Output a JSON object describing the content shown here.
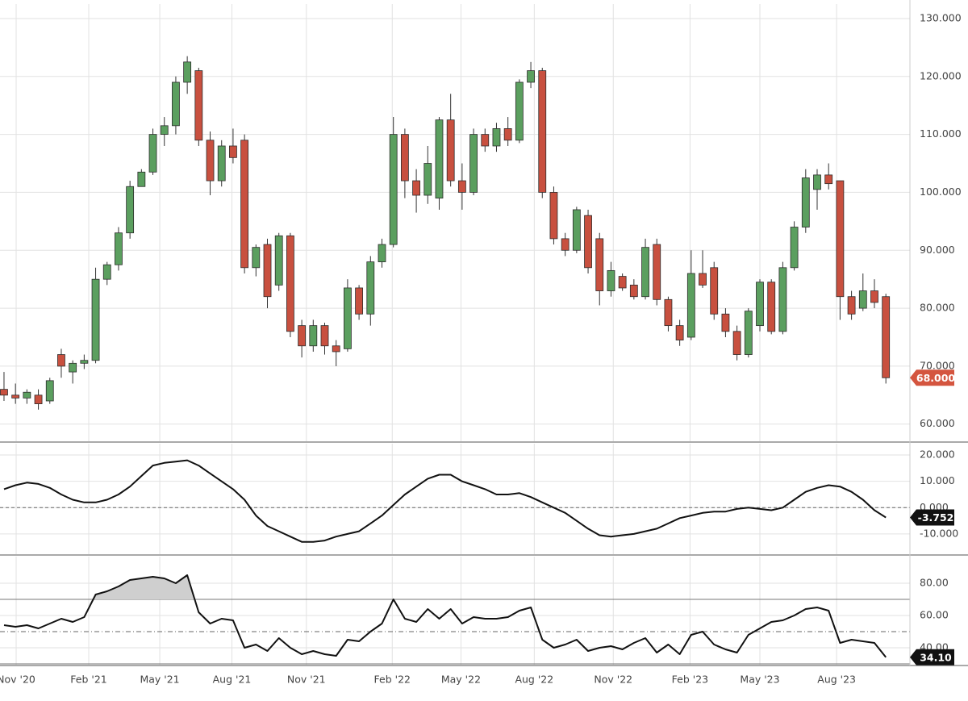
{
  "chart_data": [
    {
      "type": "candlestick",
      "x": [
        0,
        1,
        2,
        3,
        4,
        5,
        6,
        7,
        8,
        9,
        10,
        11,
        12,
        13,
        14,
        15,
        16,
        17,
        18,
        19,
        20,
        21,
        22,
        23,
        24,
        25,
        26,
        27,
        28,
        29,
        30,
        31,
        32,
        33,
        34,
        35,
        36,
        37,
        38,
        39,
        40,
        41,
        42,
        43,
        44,
        45,
        46,
        47,
        48,
        49,
        50,
        51,
        52,
        53,
        54,
        55,
        56,
        57,
        58,
        59,
        60,
        61,
        62,
        63,
        64,
        65,
        66,
        67,
        68,
        69,
        70,
        71,
        72,
        73,
        74,
        75,
        76,
        77
      ],
      "open": [
        66,
        65,
        64.5,
        65,
        64,
        72,
        69,
        70.5,
        71,
        85,
        87.5,
        93,
        101,
        103.5,
        110,
        111.5,
        119,
        121,
        109,
        102,
        108,
        109,
        87,
        91,
        84,
        92.5,
        77,
        73.5,
        77,
        73.5,
        73,
        83.5,
        79,
        88,
        91,
        110,
        102,
        99.5,
        99,
        112.5,
        102,
        100,
        110,
        108,
        111,
        109,
        119,
        121,
        100,
        92,
        90,
        96,
        92,
        83,
        85.5,
        84,
        82,
        91,
        81.5,
        77,
        75,
        86,
        87,
        79,
        76,
        72,
        77,
        84.5,
        76,
        87,
        94,
        100.5,
        103,
        102,
        82,
        80,
        83,
        82
      ],
      "high": [
        69,
        67,
        66,
        66,
        68,
        73,
        71,
        72,
        87,
        88,
        94,
        102,
        104,
        111,
        113,
        120,
        123.5,
        121.5,
        110.5,
        109,
        111,
        110,
        91,
        92,
        93,
        93,
        78,
        78,
        77.5,
        74.5,
        85,
        84,
        89,
        92,
        113,
        111,
        104,
        108,
        113,
        117,
        105,
        111,
        111,
        112,
        113,
        119.5,
        122.5,
        121.5,
        101,
        93,
        97.5,
        97,
        93,
        88,
        86,
        85,
        92,
        92,
        82,
        78,
        90,
        90,
        88,
        80,
        77,
        80,
        85,
        85,
        88,
        95,
        104,
        104,
        105,
        102,
        83,
        86,
        85,
        82.5
      ],
      "low": [
        64,
        63.5,
        63.5,
        62.5,
        63.5,
        68,
        67,
        69.5,
        70.5,
        84,
        86.5,
        92,
        101,
        103,
        108,
        110,
        117,
        108,
        99.5,
        101,
        105,
        86,
        85.5,
        80,
        83,
        75,
        71.5,
        72.5,
        72,
        70,
        72.5,
        78,
        77,
        87,
        90.5,
        99,
        96.5,
        98,
        97,
        101,
        97,
        99.5,
        107,
        107,
        108,
        108.5,
        118,
        99,
        91,
        89,
        89.5,
        86,
        80.5,
        82,
        83,
        81.5,
        81.5,
        80.5,
        76,
        73.5,
        74.5,
        83.5,
        78,
        75,
        71,
        71.5,
        76,
        75.5,
        75.5,
        86.5,
        93,
        97,
        100.5,
        78,
        78,
        79.5,
        80,
        67
      ],
      "close": [
        65,
        64.5,
        65.5,
        63.5,
        67.5,
        70,
        70.5,
        71,
        85,
        87.5,
        93,
        101,
        103.5,
        110,
        111.5,
        119,
        122.5,
        109,
        102,
        108,
        106,
        87,
        90.5,
        82,
        92.5,
        76,
        73.5,
        77,
        73.5,
        72.5,
        83.5,
        79,
        88,
        91,
        110,
        102,
        99.5,
        105,
        112.5,
        102,
        100,
        110,
        108,
        111,
        109,
        119,
        121,
        100,
        92,
        90,
        97,
        87,
        83,
        86.5,
        83.5,
        82,
        90.5,
        81.5,
        77,
        74.5,
        86,
        84,
        79,
        76,
        72,
        79.5,
        84.5,
        76,
        87,
        94,
        102.5,
        103,
        101.5,
        82,
        79,
        83,
        81,
        68
      ],
      "up_color": "#5b9f5f",
      "down_color": "#c8503f",
      "ylim": [
        56.9,
        132.5
      ],
      "yticks": [
        {
          "value": 60,
          "label": "60.000"
        },
        {
          "value": 70,
          "label": "70.000"
        },
        {
          "value": 80,
          "label": "80.000"
        },
        {
          "value": 90,
          "label": "90.000"
        },
        {
          "value": 100,
          "label": "100.000"
        },
        {
          "value": 110,
          "label": "110.000"
        },
        {
          "value": 120,
          "label": "120.000"
        },
        {
          "value": 130,
          "label": "130.000"
        }
      ],
      "xlim": [
        -0.35,
        79.1
      ],
      "xticks": [
        {
          "value": 1.06,
          "label": "Nov '20"
        },
        {
          "value": 7.4,
          "label": "Feb '21"
        },
        {
          "value": 13.6,
          "label": "May '21"
        },
        {
          "value": 19.9,
          "label": "Aug '21"
        },
        {
          "value": 26.4,
          "label": "Nov '21"
        },
        {
          "value": 33.9,
          "label": "Feb '22"
        },
        {
          "value": 39.9,
          "label": "May '22"
        },
        {
          "value": 46.3,
          "label": "Aug '22"
        },
        {
          "value": 53.2,
          "label": "Nov '22"
        },
        {
          "value": 59.9,
          "label": "Feb '23"
        },
        {
          "value": 66,
          "label": "May '23"
        },
        {
          "value": 72.7,
          "label": "Aug '23"
        }
      ],
      "grid": true,
      "last": {
        "value": 68,
        "label": "68.000",
        "color": "#d4553f"
      }
    },
    {
      "type": "line",
      "values": [
        7,
        8.5,
        9.5,
        9,
        7.5,
        5,
        3,
        2,
        2,
        3,
        5,
        8,
        12,
        16,
        17,
        17.5,
        18,
        16,
        13,
        10,
        7,
        3,
        -3,
        -7,
        -9,
        -11,
        -13,
        -13,
        -12.5,
        -11,
        -10,
        -9,
        -6,
        -3,
        1,
        5,
        8,
        11,
        12.5,
        12.5,
        10,
        8.5,
        7,
        5,
        5,
        5.5,
        4,
        2,
        0,
        -2,
        -5,
        -8,
        -10.5,
        -11,
        -10.5,
        -10,
        -9,
        -8,
        -6,
        -4,
        -3,
        -2,
        -1.5,
        -1.5,
        -0.5,
        0,
        -0.5,
        -1,
        0,
        3,
        6,
        7.5,
        8.5,
        8,
        6,
        3,
        -1,
        -3.752
      ],
      "color": "#111111",
      "ylim": [
        -18,
        24.3
      ],
      "yticks": [
        {
          "value": -10,
          "label": "-10.000"
        },
        {
          "value": 0,
          "label": "0.000"
        },
        {
          "value": 10,
          "label": "10.000"
        },
        {
          "value": 20,
          "label": "20.000"
        }
      ],
      "levels": [
        {
          "value": 0,
          "style": "dashed"
        }
      ],
      "grid": true,
      "last": {
        "value": -3.752,
        "label": "-3.752",
        "color": "#111111"
      }
    },
    {
      "type": "line",
      "values": [
        54,
        53,
        54,
        52,
        55,
        58,
        56,
        59,
        73,
        75,
        78,
        82,
        83,
        84,
        83,
        80,
        85,
        62,
        55,
        58,
        57,
        40,
        42,
        38,
        46,
        40,
        36,
        38,
        36,
        35,
        45,
        44,
        50,
        55,
        70,
        58,
        56,
        64,
        58,
        64,
        55,
        59,
        58,
        58,
        59,
        63,
        65,
        45,
        40,
        42,
        45,
        38,
        40,
        41,
        39,
        43,
        46,
        37,
        42,
        36,
        48,
        50,
        42,
        39,
        37,
        48,
        52,
        56,
        57,
        60,
        64,
        65,
        63,
        43,
        45,
        44,
        43,
        34.1
      ],
      "color": "#111111",
      "ylim": [
        29,
        96.5
      ],
      "yticks": [
        {
          "value": 40,
          "label": "40.00"
        },
        {
          "value": 60,
          "label": "60.00"
        },
        {
          "value": 80,
          "label": "80.00"
        }
      ],
      "levels": [
        {
          "value": 70,
          "style": "solid"
        },
        {
          "value": 50,
          "style": "dashdot"
        },
        {
          "value": 30,
          "style": "solid"
        }
      ],
      "overbought_fill": "#cfcfcf",
      "grid": true,
      "last": {
        "value": 34.1,
        "label": "34.10",
        "color": "#111111"
      }
    }
  ]
}
